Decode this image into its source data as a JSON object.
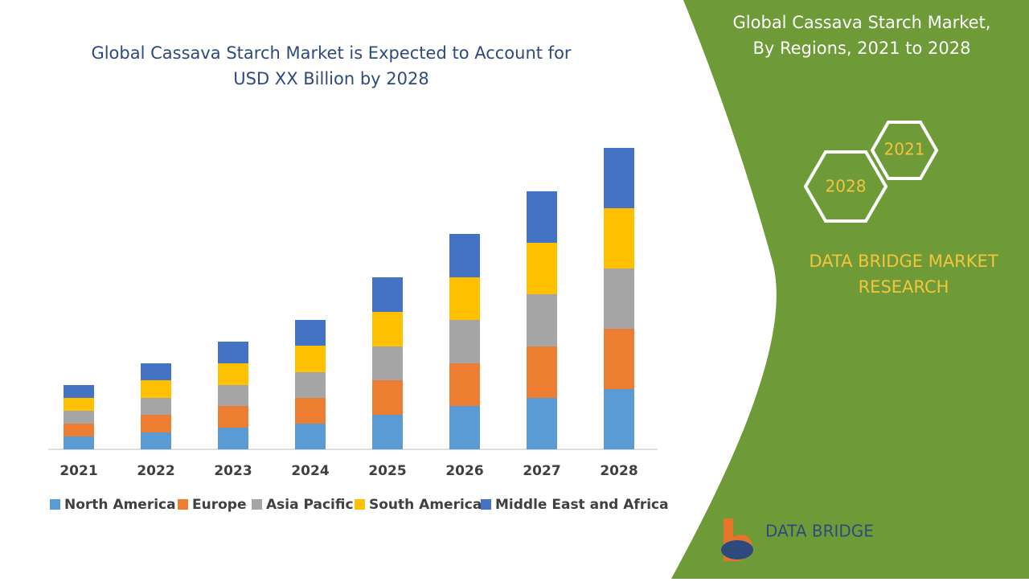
{
  "chart_data": {
    "type": "stacked-bar",
    "title_lines": [
      "Global Cassava Starch Market is Expected to Account for",
      "USD XX Billion by 2028"
    ],
    "categories": [
      "2021",
      "2022",
      "2023",
      "2024",
      "2025",
      "2026",
      "2027",
      "2028"
    ],
    "series": [
      {
        "name": "North America",
        "color": "#5b9bd5",
        "values": [
          16,
          21,
          27,
          32,
          43,
          54,
          64,
          75
        ]
      },
      {
        "name": "Europe",
        "color": "#ed7d31",
        "values": [
          16,
          22,
          27,
          32,
          43,
          53,
          64,
          75
        ]
      },
      {
        "name": "Asia Pacific",
        "color": "#a5a5a5",
        "values": [
          16,
          21,
          26,
          32,
          42,
          54,
          65,
          75
        ]
      },
      {
        "name": "South America",
        "color": "#ffc000",
        "values": [
          16,
          22,
          27,
          33,
          43,
          53,
          64,
          75
        ]
      },
      {
        "name": "Middle East and Africa",
        "color": "#4472c4",
        "values": [
          16,
          21,
          27,
          32,
          43,
          54,
          64,
          75
        ]
      }
    ]
  },
  "panel": {
    "title_lines": [
      "Global Cassava Starch Market,",
      "By Regions, 2021 to 2028"
    ],
    "hexagons": [
      "2021",
      "2028"
    ],
    "brand_lines": [
      "DATA BRIDGE MARKET",
      "RESEARCH"
    ],
    "logo_text": "DATA BRIDGE"
  }
}
